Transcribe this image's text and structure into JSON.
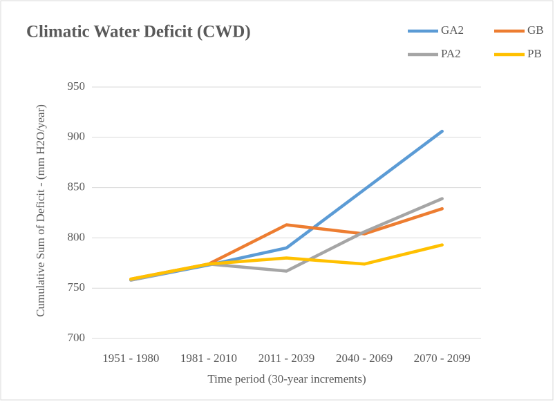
{
  "chart_data": {
    "type": "line",
    "title": "Climatic Water Deficit (CWD)",
    "x_label": "Time period (30-year increments)",
    "y_label": "Cumulative Sum of Deficit - (mm H2O/year)",
    "categories": [
      "1951 - 1980",
      "1981 - 2010",
      "2011 - 2039",
      "2040 - 2069",
      "2070 - 2099"
    ],
    "series": [
      {
        "name": "GA2",
        "color": "#5b9bd5",
        "values": [
          758,
          773,
          790,
          848,
          906
        ]
      },
      {
        "name": "GB",
        "color": "#ed7d31",
        "values": [
          759,
          774,
          813,
          804,
          829
        ]
      },
      {
        "name": "PA2",
        "color": "#a5a5a5",
        "values": [
          758,
          774,
          767,
          806,
          839
        ]
      },
      {
        "name": "PB",
        "color": "#ffc000",
        "values": [
          759,
          774,
          780,
          774,
          793
        ]
      }
    ],
    "ylim": [
      700,
      950
    ],
    "yticks": [
      700,
      750,
      800,
      850,
      900,
      950
    ],
    "grid": true,
    "legend": "top-right"
  }
}
